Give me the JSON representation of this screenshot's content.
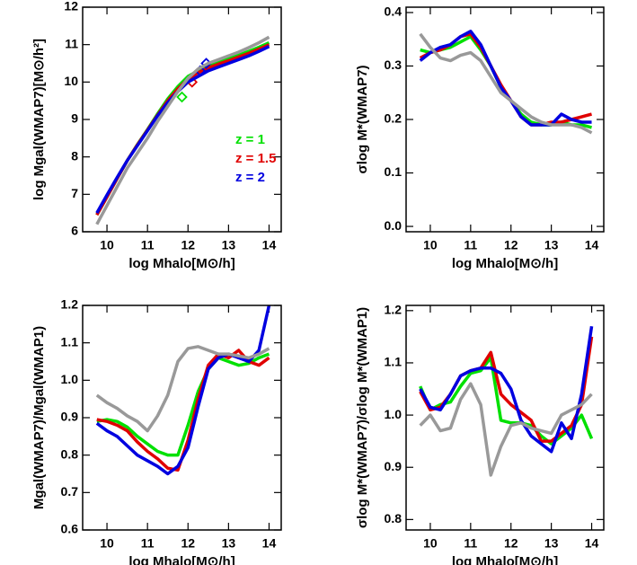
{
  "chart_data": [
    {
      "type": "line",
      "x_label": "log Mhalo[M⊙/h]",
      "y_label": "log Mgal(WMAP7)[M⊙/h²]",
      "xlim": [
        9.4,
        14.3
      ],
      "xticks": [
        10,
        11,
        12,
        13,
        14
      ],
      "ylim": [
        6,
        12
      ],
      "yticks": [
        6,
        7,
        8,
        9,
        10,
        11,
        12
      ],
      "x": [
        9.75,
        10,
        10.25,
        10.5,
        10.75,
        11,
        11.25,
        11.5,
        11.75,
        12,
        12.25,
        12.5,
        12.75,
        13,
        13.25,
        13.5,
        13.75,
        14
      ],
      "series": [
        {
          "name": "z = 1",
          "color": "#00e000",
          "values": [
            6.45,
            6.93,
            7.42,
            7.9,
            8.33,
            8.73,
            9.15,
            9.55,
            9.88,
            10.15,
            10.3,
            10.42,
            10.52,
            10.62,
            10.72,
            10.82,
            10.93,
            11.05
          ],
          "marker_x": [
            11.85
          ],
          "marker_y": [
            9.6
          ]
        },
        {
          "name": "z = 1.5",
          "color": "#e00000",
          "values": [
            6.45,
            6.93,
            7.42,
            7.9,
            8.32,
            8.72,
            9.12,
            9.5,
            9.82,
            10.08,
            10.25,
            10.38,
            10.48,
            10.57,
            10.67,
            10.77,
            10.88,
            11.0
          ],
          "marker_x": [
            12.1
          ],
          "marker_y": [
            10.0
          ]
        },
        {
          "name": "z = 2",
          "color": "#0000e0",
          "values": [
            6.5,
            6.98,
            7.45,
            7.9,
            8.3,
            8.7,
            9.1,
            9.45,
            9.75,
            10.0,
            10.15,
            10.3,
            10.4,
            10.5,
            10.6,
            10.7,
            10.82,
            10.95
          ],
          "marker_x": [
            12.3,
            12.45
          ],
          "marker_y": [
            10.3,
            10.5
          ]
        },
        {
          "color": "#999999",
          "values": [
            6.2,
            6.7,
            7.2,
            7.7,
            8.1,
            8.5,
            8.95,
            9.35,
            9.75,
            10.1,
            10.35,
            10.5,
            10.6,
            10.7,
            10.8,
            10.92,
            11.05,
            11.2
          ]
        }
      ]
    },
    {
      "type": "line",
      "x_label": "log Mhalo[M⊙/h]",
      "y_label": "σlog M*(WMAP7)",
      "xlim": [
        9.4,
        14.3
      ],
      "xticks": [
        10,
        11,
        12,
        13,
        14
      ],
      "ylim": [
        -0.01,
        0.41
      ],
      "yticks": [
        {
          "value": 0,
          "label": "0.0"
        },
        0.1,
        0.2,
        0.3,
        0.4
      ],
      "x": [
        9.75,
        10,
        10.25,
        10.5,
        10.75,
        11,
        11.25,
        11.5,
        11.75,
        12,
        12.25,
        12.5,
        12.75,
        13,
        13.25,
        13.5,
        13.75,
        14
      ],
      "series": [
        {
          "color": "#00e000",
          "values": [
            0.33,
            0.325,
            0.33,
            0.335,
            0.345,
            0.355,
            0.33,
            0.3,
            0.26,
            0.235,
            0.21,
            0.195,
            0.19,
            0.19,
            0.195,
            0.19,
            0.19,
            0.185
          ]
        },
        {
          "color": "#e00000",
          "values": [
            0.315,
            0.325,
            0.33,
            0.34,
            0.355,
            0.36,
            0.335,
            0.3,
            0.265,
            0.235,
            0.205,
            0.19,
            0.19,
            0.195,
            0.195,
            0.2,
            0.205,
            0.21
          ]
        },
        {
          "color": "#0000e0",
          "values": [
            0.31,
            0.325,
            0.335,
            0.34,
            0.355,
            0.365,
            0.34,
            0.3,
            0.26,
            0.235,
            0.205,
            0.19,
            0.19,
            0.19,
            0.21,
            0.2,
            0.195,
            0.195
          ]
        },
        {
          "color": "#999999",
          "values": [
            0.36,
            0.335,
            0.315,
            0.31,
            0.32,
            0.325,
            0.31,
            0.28,
            0.25,
            0.235,
            0.22,
            0.205,
            0.195,
            0.19,
            0.19,
            0.19,
            0.185,
            0.175
          ]
        }
      ]
    },
    {
      "type": "line",
      "x_label": "log Mhalo[M⊙/h]",
      "y_label": "Mgal(WMAP7)/Mgal(WMAP1)",
      "xlim": [
        9.4,
        14.3
      ],
      "xticks": [
        10,
        11,
        12,
        13,
        14
      ],
      "ylim": [
        0.6,
        1.2
      ],
      "yticks": [
        0.6,
        0.7,
        0.8,
        0.9,
        {
          "value": 1,
          "label": "1.0"
        },
        1.1,
        1.2
      ],
      "x": [
        9.75,
        10,
        10.25,
        10.5,
        10.75,
        11,
        11.25,
        11.5,
        11.75,
        12,
        12.25,
        12.5,
        12.75,
        13,
        13.25,
        13.5,
        13.75,
        14
      ],
      "series": [
        {
          "color": "#00e000",
          "values": [
            0.89,
            0.895,
            0.89,
            0.875,
            0.85,
            0.83,
            0.81,
            0.8,
            0.8,
            0.88,
            0.97,
            1.03,
            1.06,
            1.05,
            1.04,
            1.045,
            1.06,
            1.07
          ]
        },
        {
          "color": "#e00000",
          "values": [
            0.895,
            0.89,
            0.88,
            0.865,
            0.835,
            0.81,
            0.79,
            0.765,
            0.76,
            0.84,
            0.95,
            1.04,
            1.07,
            1.06,
            1.08,
            1.05,
            1.04,
            1.06
          ]
        },
        {
          "color": "#0000e0",
          "values": [
            0.885,
            0.865,
            0.85,
            0.825,
            0.8,
            0.785,
            0.77,
            0.75,
            0.77,
            0.82,
            0.93,
            1.03,
            1.06,
            1.07,
            1.06,
            1.05,
            1.08,
            1.2
          ]
        },
        {
          "color": "#999999",
          "values": [
            0.96,
            0.94,
            0.925,
            0.905,
            0.89,
            0.865,
            0.905,
            0.96,
            1.05,
            1.085,
            1.09,
            1.08,
            1.07,
            1.07,
            1.065,
            1.06,
            1.07,
            1.085
          ]
        }
      ]
    },
    {
      "type": "line",
      "x_label": "log Mhalo[M⊙/h]",
      "y_label": "σlog M*(WMAP7)/σlog M*(WMAP1)",
      "xlim": [
        9.4,
        14.3
      ],
      "xticks": [
        10,
        11,
        12,
        13,
        14
      ],
      "ylim": [
        0.78,
        1.21
      ],
      "yticks": [
        0.8,
        0.9,
        {
          "value": 1,
          "label": "1.0"
        },
        1.1,
        1.2
      ],
      "x": [
        9.75,
        10,
        10.25,
        10.5,
        10.75,
        11,
        11.25,
        11.5,
        11.75,
        12,
        12.25,
        12.5,
        12.75,
        13,
        13.25,
        13.5,
        13.75,
        14
      ],
      "series": [
        {
          "color": "#00e000",
          "values": [
            1.055,
            1.01,
            1.02,
            1.025,
            1.055,
            1.08,
            1.085,
            1.11,
            0.99,
            0.985,
            0.985,
            0.98,
            0.96,
            0.945,
            0.96,
            0.975,
            1.0,
            0.955
          ]
        },
        {
          "color": "#e00000",
          "values": [
            1.045,
            1.01,
            1.015,
            1.04,
            1.075,
            1.085,
            1.09,
            1.12,
            1.04,
            1.02,
            1.005,
            0.99,
            0.95,
            0.95,
            0.965,
            0.98,
            1.02,
            1.15
          ]
        },
        {
          "color": "#0000e0",
          "values": [
            1.05,
            1.015,
            1.01,
            1.04,
            1.075,
            1.085,
            1.09,
            1.09,
            1.08,
            1.05,
            0.99,
            0.96,
            0.945,
            0.93,
            0.985,
            0.955,
            1.04,
            1.17
          ]
        },
        {
          "color": "#999999",
          "values": [
            0.98,
            1.0,
            0.97,
            0.975,
            1.03,
            1.06,
            1.02,
            0.885,
            0.94,
            0.98,
            0.985,
            0.975,
            0.97,
            0.965,
            1.0,
            1.01,
            1.02,
            1.04
          ]
        }
      ]
    }
  ]
}
